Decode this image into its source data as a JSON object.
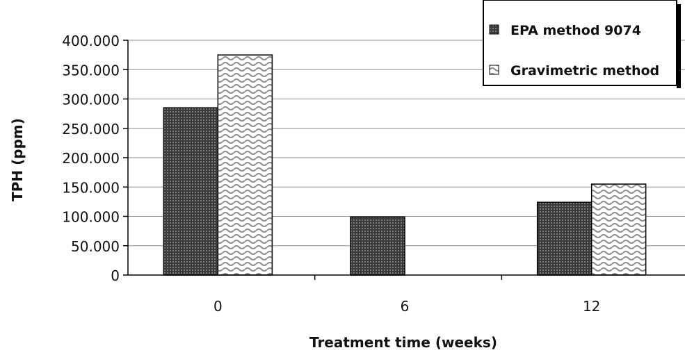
{
  "chart_data": {
    "type": "bar",
    "title": "",
    "xlabel": "Treatment time (weeks)",
    "ylabel": "TPH (ppm)",
    "categories": [
      "0",
      "6",
      "12"
    ],
    "series": [
      {
        "name": "EPA method 9074",
        "values": [
          285,
          99,
          124
        ],
        "color": "#555555",
        "pattern": "grid"
      },
      {
        "name": "Gravimetric method",
        "values": [
          375,
          0,
          155
        ],
        "color": "#d9d9d9",
        "pattern": "wave"
      }
    ],
    "ylim": [
      0,
      400
    ],
    "yticks": [
      0,
      50,
      100,
      150,
      200,
      250,
      300,
      350,
      400
    ],
    "ytick_labels": [
      "0",
      "50.000",
      "100.000",
      "150.000",
      "200.000",
      "250.000",
      "300.000",
      "350.000",
      "400.000"
    ],
    "grid": true,
    "legend_position": "top-right"
  }
}
